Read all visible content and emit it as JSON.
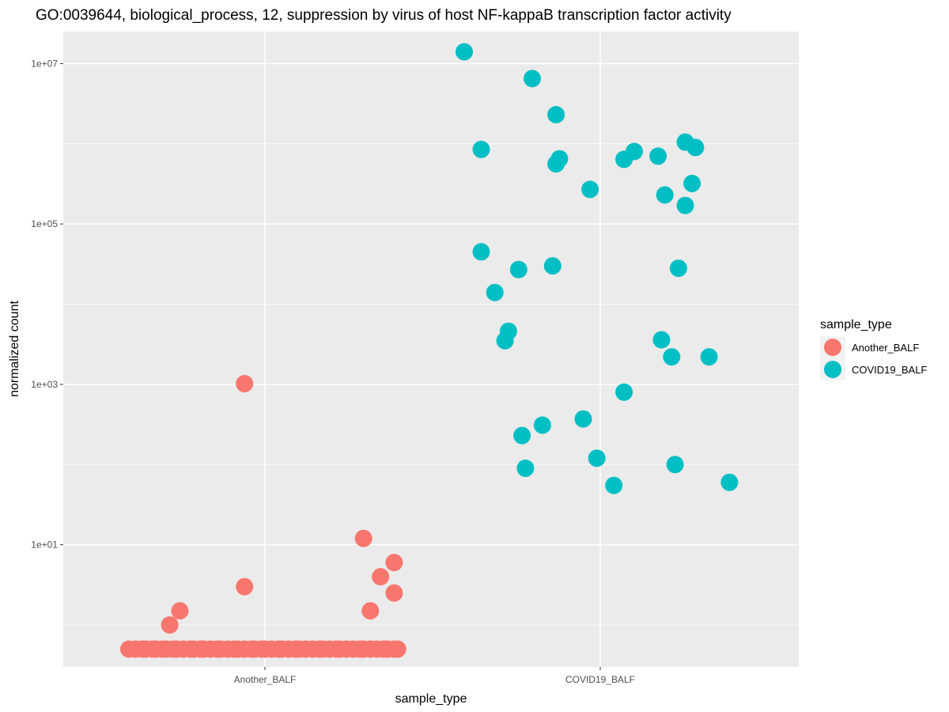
{
  "chart_data": {
    "type": "scatter",
    "title": "GO:0039644, biological_process, 12, suppression by virus of host NF-kappaB transcription factor activity",
    "xlabel": "sample_type",
    "ylabel": "normalized count",
    "y_scale": "log10",
    "ylim": [
      0.3,
      25000000
    ],
    "categories": [
      "Another_BALF",
      "COVID19_BALF"
    ],
    "y_ticks": [
      {
        "value": 10,
        "label": "1e+01"
      },
      {
        "value": 1000,
        "label": "1e+03"
      },
      {
        "value": 100000,
        "label": "1e+05"
      },
      {
        "value": 10000000,
        "label": "1e+07"
      }
    ],
    "y_minor_ticks": [
      1,
      100,
      10000,
      1000000
    ],
    "grid": true,
    "legend": {
      "title": "sample_type",
      "position": "right",
      "entries": [
        {
          "label": "Another_BALF",
          "color": "#F8766D"
        },
        {
          "label": "COVID19_BALF",
          "color": "#00BFC4"
        }
      ]
    },
    "series": [
      {
        "name": "Another_BALF",
        "color": "#F8766D",
        "x": [
          -0.4,
          -0.38,
          -0.36,
          -0.35,
          -0.33,
          -0.32,
          -0.3,
          -0.29,
          -0.27,
          -0.26,
          -0.24,
          -0.22,
          -0.21,
          -0.19,
          -0.18,
          -0.16,
          -0.14,
          -0.13,
          -0.11,
          -0.09,
          -0.08,
          -0.06,
          -0.04,
          -0.03,
          -0.01,
          0.0,
          0.02,
          0.04,
          0.05,
          0.07,
          0.09,
          0.1,
          0.12,
          0.14,
          0.16,
          0.17,
          0.19,
          0.21,
          0.22,
          0.24,
          0.26,
          0.28,
          0.29,
          0.31,
          0.33,
          0.35,
          0.36,
          0.38,
          -0.28,
          -0.25,
          -0.06,
          -0.06,
          0.29,
          0.31,
          0.34,
          0.38,
          0.38,
          0.39
        ],
        "y": [
          0.5,
          0.5,
          0.5,
          0.5,
          0.5,
          0.5,
          0.5,
          0.5,
          0.5,
          0.5,
          0.5,
          0.5,
          0.5,
          0.5,
          0.5,
          0.5,
          0.5,
          0.5,
          0.5,
          0.5,
          0.5,
          0.5,
          0.5,
          0.5,
          0.5,
          0.5,
          0.5,
          0.5,
          0.5,
          0.5,
          0.5,
          0.5,
          0.5,
          0.5,
          0.5,
          0.5,
          0.5,
          0.5,
          0.5,
          0.5,
          0.5,
          0.5,
          0.5,
          0.5,
          0.5,
          0.5,
          0.5,
          0.5,
          1.0,
          1.5,
          1020,
          3.0,
          12,
          1.5,
          4,
          6,
          2.5,
          0.5
        ]
      },
      {
        "name": "COVID19_BALF",
        "color": "#00BFC4",
        "x": [
          -0.4,
          -0.2,
          -0.13,
          -0.13,
          -0.35,
          -0.12,
          -0.03,
          0.07,
          0.19,
          0.1,
          0.25,
          0.17,
          0.25,
          0.27,
          0.28,
          -0.24,
          -0.35,
          -0.31,
          -0.27,
          -0.14,
          0.23,
          0.32,
          -0.28,
          0.18,
          0.21,
          0.07,
          -0.05,
          -0.17,
          -0.23,
          -0.22,
          -0.01,
          0.04,
          0.22,
          0.38
        ],
        "y": [
          14000000,
          6500000,
          2300000,
          560000,
          850000,
          650000,
          270000,
          640000,
          230000,
          800000,
          170000,
          700000,
          1050000,
          320000,
          900000,
          27000,
          45000,
          14000,
          4600,
          30000,
          28000,
          2200,
          3500,
          3600,
          2200,
          800,
          370,
          310,
          230,
          90,
          120,
          55,
          100,
          60
        ]
      }
    ]
  }
}
